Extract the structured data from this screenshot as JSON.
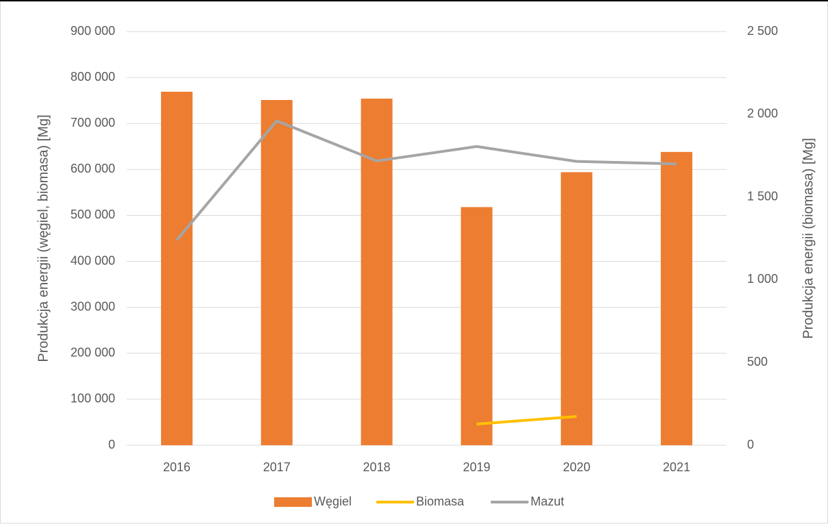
{
  "chart_data": {
    "type": "bar",
    "categories": [
      "2016",
      "2017",
      "2018",
      "2019",
      "2020",
      "2021"
    ],
    "series": [
      {
        "name": "Węgiel",
        "type": "bar",
        "color": "#ed7d31",
        "values": [
          769000,
          751000,
          754000,
          518000,
          594000,
          638000
        ]
      },
      {
        "name": "Biomasa",
        "type": "line",
        "axis": "y2",
        "color": "#ffc000",
        "values": [
          null,
          null,
          null,
          128,
          174,
          null
        ]
      },
      {
        "name": "Mazut",
        "type": "line",
        "axis": "y2",
        "color": "#a5a5a5",
        "values": [
          1240,
          1960,
          1718,
          1805,
          1715,
          1700
        ]
      }
    ],
    "ylabel": "Produkcja energii (węgiel, biomasa) [Mg]",
    "y2label": "Produkcja energii (biomasa) [Mg]",
    "ylim": [
      0,
      900000
    ],
    "yticks": [
      0,
      {
        "value": 100000,
        "label": "100 000"
      },
      {
        "value": 200000,
        "label": "200 000"
      },
      {
        "value": 300000,
        "label": "300 000"
      },
      {
        "value": 400000,
        "label": "400 000"
      },
      {
        "value": 500000,
        "label": "500 000"
      },
      {
        "value": 600000,
        "label": "600 000"
      },
      {
        "value": 700000,
        "label": "700 000"
      },
      {
        "value": 800000,
        "label": "800 000"
      },
      {
        "value": 900000,
        "label": "900 000"
      }
    ],
    "y2lim": [
      0,
      2500
    ],
    "y2ticks": [
      0,
      500,
      {
        "value": 1000,
        "label": "1 000"
      },
      {
        "value": 1500,
        "label": "1 500"
      },
      {
        "value": 2000,
        "label": "2 000"
      },
      {
        "value": 2500,
        "label": "2 500"
      }
    ],
    "grid": true,
    "legend": "bottom"
  }
}
